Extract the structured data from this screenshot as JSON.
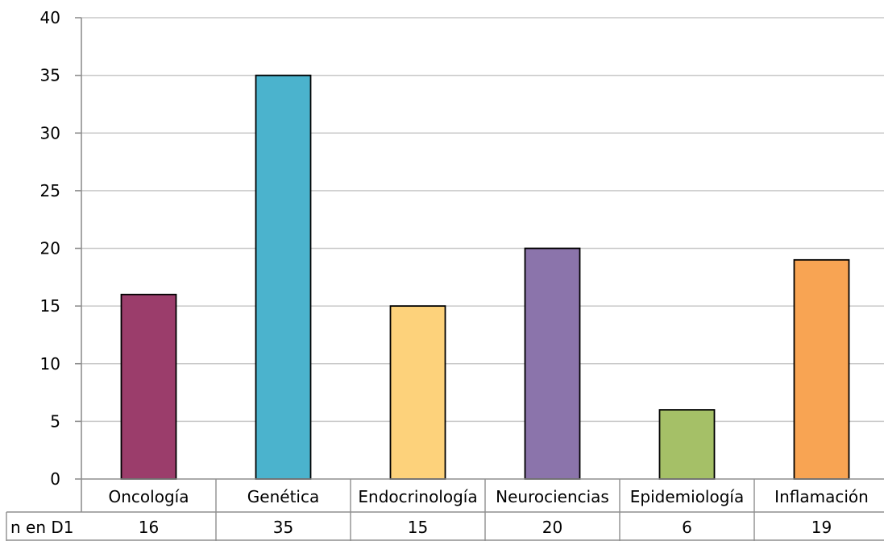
{
  "chart_data": {
    "type": "bar",
    "title": "",
    "xlabel": "",
    "ylabel": "",
    "ylim": [
      0,
      40
    ],
    "yticks": [
      0,
      5,
      10,
      15,
      20,
      25,
      30,
      35,
      40
    ],
    "grid": true,
    "categories": [
      "Oncología",
      "Genética",
      "Endocrinología",
      "Neurociencias",
      "Epidemiología",
      "Inflamación"
    ],
    "series": [
      {
        "name": "n en D1",
        "values": [
          16,
          35,
          15,
          20,
          6,
          19
        ],
        "colors": [
          "#9b3d6b",
          "#4bb3cd",
          "#fdd27b",
          "#8b74ab",
          "#a5c067",
          "#f8a453"
        ]
      }
    ],
    "data_table": {
      "row_header": "n en D1",
      "values": [
        "16",
        "35",
        "15",
        "20",
        "6",
        "19"
      ]
    }
  }
}
